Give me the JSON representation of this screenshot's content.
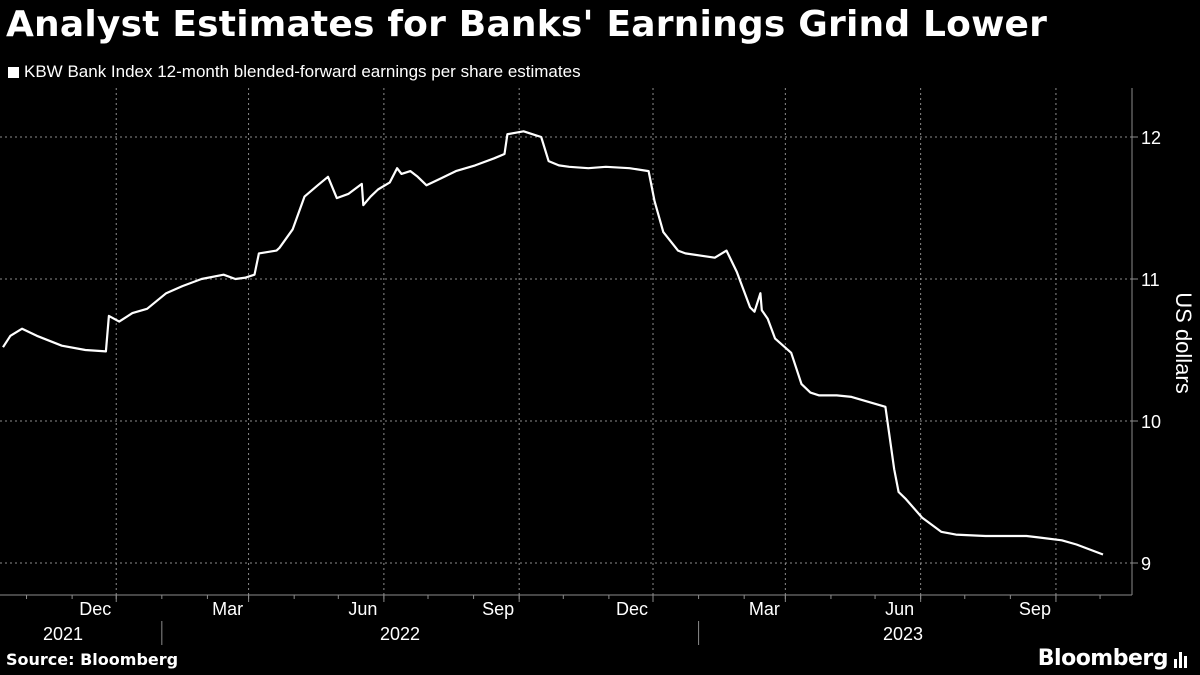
{
  "title": "Analyst Estimates for Banks' Earnings Grind Lower",
  "source": "Source: Bloomberg",
  "brand": "Bloomberg",
  "colors": {
    "background": "#000000",
    "line": "#ffffff",
    "grid": "#8c8c8c"
  },
  "chart_data": {
    "type": "line",
    "title": "Analyst Estimates for Banks' Earnings Grind Lower",
    "ylabel": "US dollars",
    "xlabel": "",
    "ylim": [
      8.8,
      12.3
    ],
    "yticks": [
      9,
      10,
      11,
      12
    ],
    "x_months": [
      "Dec",
      "Mar",
      "Jun",
      "Sep",
      "Dec",
      "Mar",
      "Jun",
      "Sep"
    ],
    "x_years": [
      "2021",
      "2022",
      "2023"
    ],
    "grid": true,
    "legend_position": "top-left",
    "series": [
      {
        "name": "KBW Bank Index 12-month blended-forward earnings per share estimates",
        "x": [
          "2021-09-15",
          "2021-09-20",
          "2021-09-28",
          "2021-10-08",
          "2021-10-25",
          "2021-11-10",
          "2021-11-24",
          "2021-11-26",
          "2021-12-03",
          "2021-12-12",
          "2021-12-22",
          "2022-01-04",
          "2022-01-15",
          "2022-01-28",
          "2022-02-12",
          "2022-02-20",
          "2022-02-27",
          "2022-03-05",
          "2022-03-08",
          "2022-03-20",
          "2022-03-22",
          "2022-03-31",
          "2022-04-08",
          "2022-04-17",
          "2022-04-24",
          "2022-04-30",
          "2022-05-08",
          "2022-05-17",
          "2022-05-18",
          "2022-05-23",
          "2022-05-28",
          "2022-06-05",
          "2022-06-10",
          "2022-06-13",
          "2022-06-19",
          "2022-06-24",
          "2022-06-30",
          "2022-07-10",
          "2022-07-20",
          "2022-08-02",
          "2022-08-15",
          "2022-08-22",
          "2022-08-24",
          "2022-09-04",
          "2022-09-10",
          "2022-09-16",
          "2022-09-21",
          "2022-09-28",
          "2022-10-05",
          "2022-10-18",
          "2022-10-30",
          "2022-11-15",
          "2022-11-28",
          "2022-12-02",
          "2022-12-08",
          "2022-12-18",
          "2022-12-23",
          "2023-01-12",
          "2023-01-20",
          "2023-01-27",
          "2023-02-05",
          "2023-02-08",
          "2023-02-12",
          "2023-02-13",
          "2023-02-17",
          "2023-02-22",
          "2023-03-05",
          "2023-03-12",
          "2023-03-18",
          "2023-03-24",
          "2023-04-03",
          "2023-04-05",
          "2023-04-15",
          "2023-05-08",
          "2023-05-14",
          "2023-05-17",
          "2023-05-22",
          "2023-06-02",
          "2023-06-15",
          "2023-06-25",
          "2023-07-15",
          "2023-08-12",
          "2023-08-20",
          "2023-09-05",
          "2023-09-15",
          "2023-10-03"
        ],
        "values": [
          10.52,
          10.6,
          10.65,
          10.6,
          10.53,
          10.5,
          10.49,
          10.74,
          10.7,
          10.76,
          10.79,
          10.9,
          10.95,
          11.0,
          11.03,
          11.0,
          11.01,
          11.03,
          11.18,
          11.2,
          11.22,
          11.35,
          11.58,
          11.66,
          11.72,
          11.57,
          11.6,
          11.67,
          11.52,
          11.58,
          11.63,
          11.68,
          11.78,
          11.74,
          11.76,
          11.72,
          11.66,
          11.71,
          11.76,
          11.8,
          11.85,
          11.88,
          12.02,
          12.04,
          12.02,
          12.0,
          11.83,
          11.8,
          11.79,
          11.78,
          11.79,
          11.78,
          11.76,
          11.55,
          11.33,
          11.2,
          11.18,
          11.15,
          11.2,
          11.05,
          10.8,
          10.77,
          10.9,
          10.78,
          10.72,
          10.58,
          10.48,
          10.26,
          10.2,
          10.18,
          10.18,
          10.18,
          10.17,
          10.1,
          9.66,
          9.5,
          9.45,
          9.32,
          9.22,
          9.2,
          9.19,
          9.19,
          9.18,
          9.16,
          9.13,
          9.06
        ]
      }
    ]
  }
}
